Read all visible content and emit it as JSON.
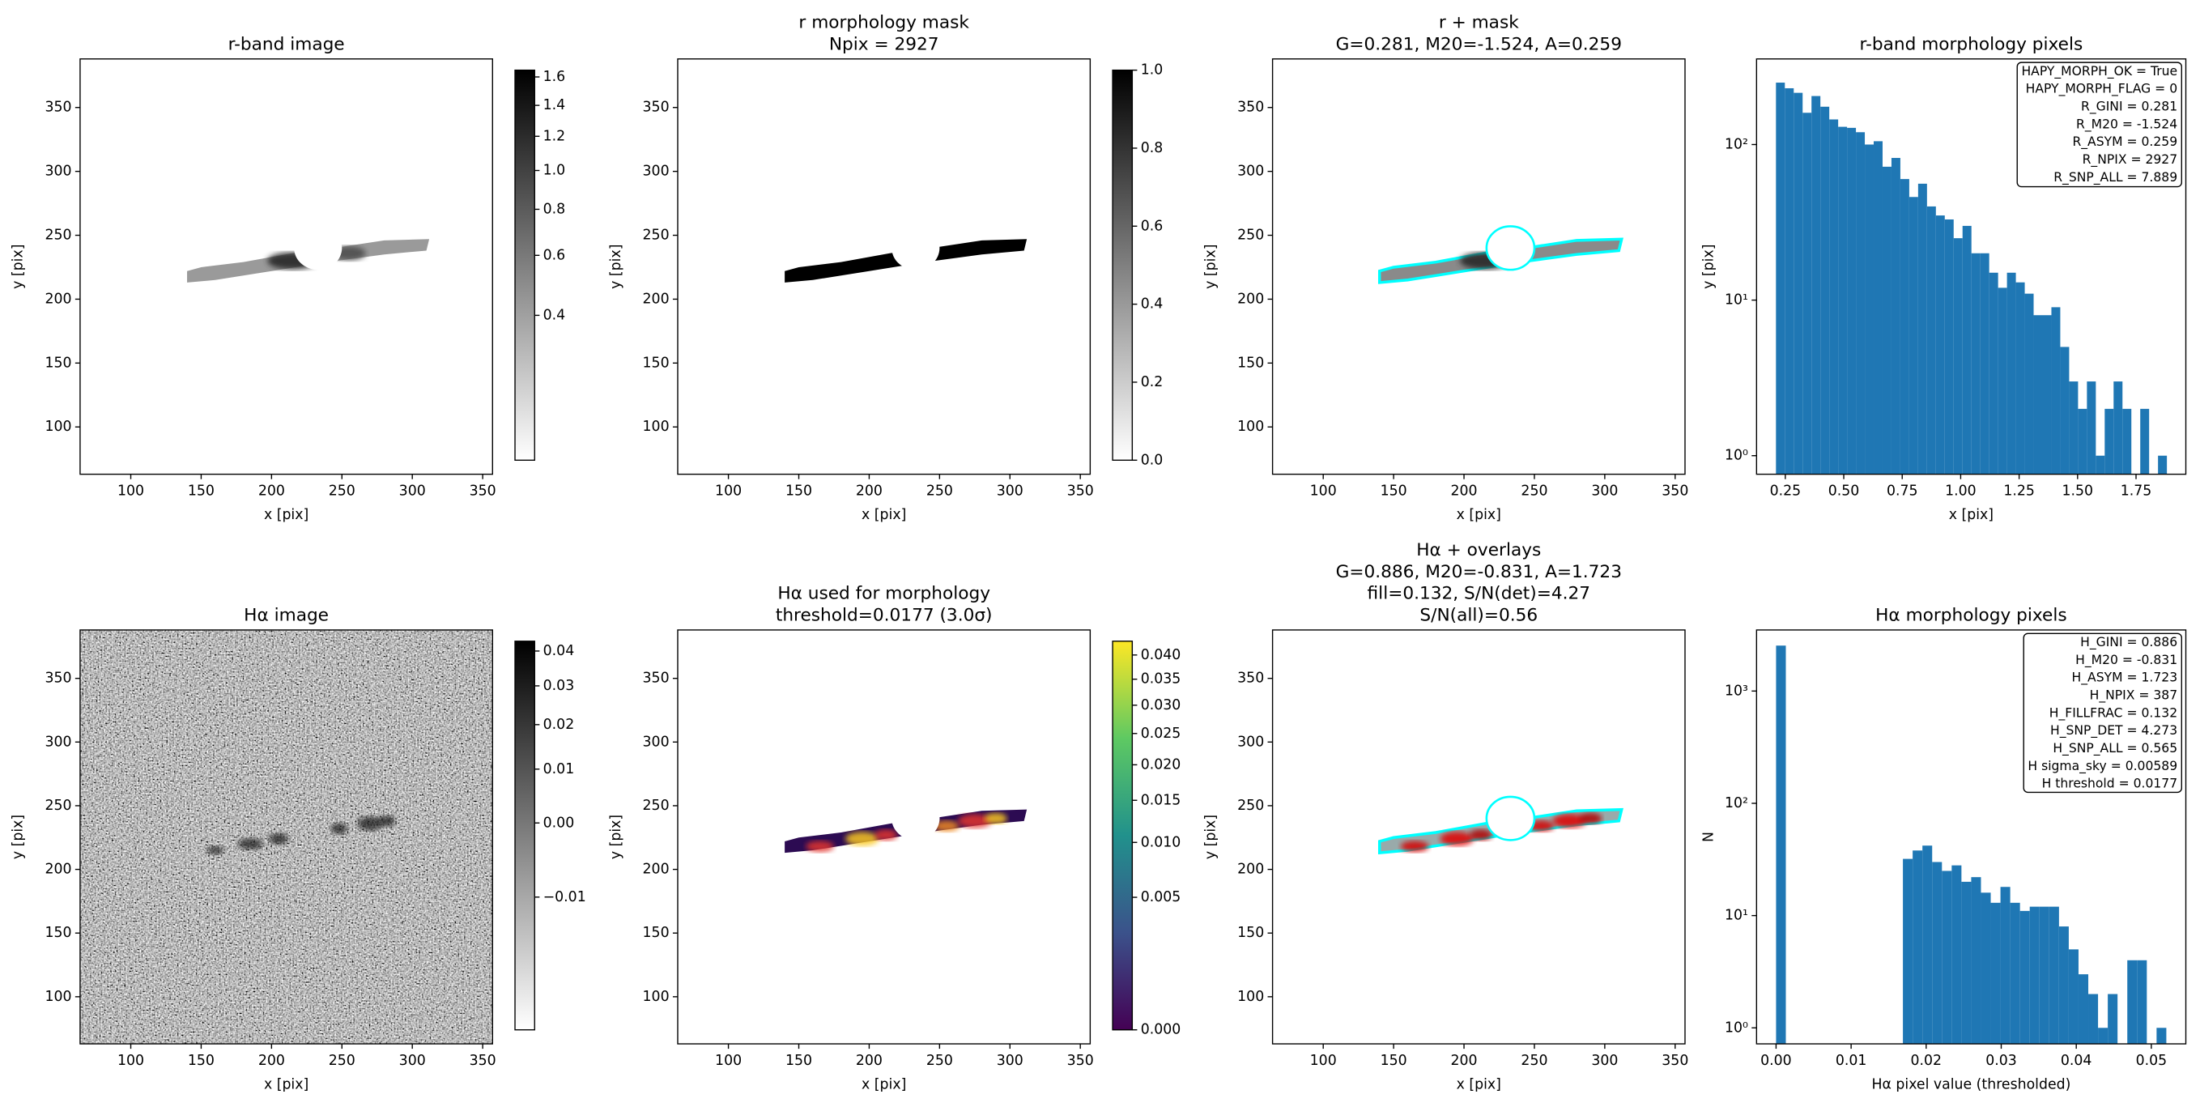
{
  "chart_data": [
    {
      "type": "image",
      "title": [
        "r-band image"
      ],
      "xlabel": "x [pix]",
      "ylabel": "y [pix]",
      "xlim": [
        64,
        357
      ],
      "ylim": [
        63,
        388
      ],
      "xticks": [
        100,
        150,
        200,
        250,
        300,
        350
      ],
      "yticks": [
        100,
        150,
        200,
        250,
        300,
        350
      ],
      "colorbar": {
        "cmap": "gray_r",
        "cscale": "sqrt",
        "clim": [
          0.2,
          1.65
        ],
        "ticks": [
          0.4,
          0.6,
          0.8,
          {
            "value": 1,
            "label": "1.0"
          },
          1.2,
          1.4,
          1.6
        ]
      }
    },
    {
      "type": "image",
      "title": [
        "r morphology mask",
        "Npix = 2927"
      ],
      "xlabel": "x [pix]",
      "ylabel": "y [pix]",
      "xlim": [
        64,
        357
      ],
      "ylim": [
        63,
        388
      ],
      "xticks": [
        100,
        150,
        200,
        250,
        300,
        350
      ],
      "yticks": [
        100,
        150,
        200,
        250,
        300,
        350
      ],
      "colorbar": {
        "cmap": "gray_r",
        "cscale": "linear",
        "clim": [
          0,
          1
        ],
        "ticks": [
          {
            "value": 0,
            "label": "0.0"
          },
          0.2,
          0.4,
          0.6,
          0.8,
          {
            "value": 1,
            "label": "1.0"
          }
        ]
      }
    },
    {
      "type": "image",
      "title": [
        "r + mask",
        "G=0.281, M20=-1.524, A=0.259"
      ],
      "xlabel": "x [pix]",
      "ylabel": "y [pix]",
      "xlim": [
        64,
        357
      ],
      "ylim": [
        63,
        388
      ],
      "xticks": [
        100,
        150,
        200,
        250,
        300,
        350
      ],
      "yticks": [
        100,
        150,
        200,
        250,
        300,
        350
      ]
    },
    {
      "type": "histogram",
      "title": [
        "r-band morphology pixels"
      ],
      "xlabel": "x [pix]",
      "ylabel": "y [pix]",
      "color": "#1f77b4",
      "log_y": true,
      "bins": [
        0.21,
        0.248,
        0.286,
        0.324,
        0.362,
        0.4,
        0.438,
        0.476,
        0.514,
        0.552,
        0.59,
        0.628,
        0.666,
        0.704,
        0.742,
        0.78,
        0.818,
        0.856,
        0.894,
        0.932,
        0.97,
        1.008,
        1.046,
        1.084,
        1.122,
        1.16,
        1.198,
        1.236,
        1.274,
        1.312,
        1.35,
        1.388,
        1.426,
        1.464,
        1.502,
        1.54,
        1.578,
        1.616,
        1.654,
        1.692,
        1.73,
        1.768,
        1.806,
        1.844,
        1.882
      ],
      "counts": [
        250,
        230,
        215,
        160,
        205,
        175,
        145,
        130,
        128,
        120,
        100,
        105,
        72,
        82,
        60,
        46,
        56,
        40,
        35,
        33,
        25,
        30,
        20,
        20,
        15,
        12,
        15,
        13,
        11,
        8,
        8,
        9,
        5,
        3,
        2,
        3,
        1,
        2,
        3,
        2,
        0,
        2,
        0,
        1
      ],
      "xlim": [
        0.127,
        1.963
      ],
      "ylim": [
        0.76,
        355
      ],
      "xticks": [
        0.25,
        {
          "value": 0.5,
          "label": "0.50"
        },
        0.75,
        {
          "value": 1,
          "label": "1.00"
        },
        1.25,
        {
          "value": 1.5,
          "label": "1.50"
        },
        1.75
      ],
      "yticks": [
        {
          "value": 1,
          "label": "10⁰"
        },
        {
          "value": 10,
          "label": "10¹"
        },
        {
          "value": 100,
          "label": "10²"
        }
      ],
      "annotation": [
        "HAPY_MORPH_OK = True",
        "HAPY_MORPH_FLAG = 0",
        "R_GINI = 0.281",
        "R_M20 = -1.524",
        "R_ASYM = 0.259",
        "R_NPIX = 2927",
        "R_SNP_ALL = 7.889"
      ]
    },
    {
      "type": "image",
      "title": [
        "Hα image"
      ],
      "xlabel": "x [pix]",
      "ylabel": "y [pix]",
      "xlim": [
        64,
        357
      ],
      "ylim": [
        63,
        388
      ],
      "xticks": [
        100,
        150,
        200,
        250,
        300,
        350
      ],
      "yticks": [
        100,
        150,
        200,
        250,
        300,
        350
      ],
      "colorbar": {
        "cmap": "gray_r",
        "cscale": "sqrt",
        "clim": [
          -0.017,
          0.043
        ],
        "ticks": [
          {
            "value": -0.01,
            "label": "−0.01"
          },
          {
            "value": 0,
            "label": "0.00"
          },
          0.01,
          0.02,
          0.03,
          0.04
        ]
      }
    },
    {
      "type": "image",
      "title": [
        "Hα used for morphology",
        "threshold=0.0177 (3.0σ)"
      ],
      "xlabel": "x [pix]",
      "ylabel": "y [pix]",
      "xlim": [
        64,
        357
      ],
      "ylim": [
        63,
        388
      ],
      "xticks": [
        100,
        150,
        200,
        250,
        300,
        350
      ],
      "yticks": [
        100,
        150,
        200,
        250,
        300,
        350
      ],
      "colorbar": {
        "cmap": "viridis",
        "cscale": "sqrt",
        "clim": [
          0,
          0.043
        ],
        "ticks": [
          {
            "value": 0,
            "label": "0.000"
          },
          0.005,
          {
            "value": 0.01,
            "label": "0.010"
          },
          0.015,
          {
            "value": 0.02,
            "label": "0.020"
          },
          0.025,
          {
            "value": 0.03,
            "label": "0.030"
          },
          0.035,
          {
            "value": 0.04,
            "label": "0.040"
          }
        ]
      }
    },
    {
      "type": "image",
      "title": [
        "Hα + overlays",
        "G=0.886, M20=-0.831, A=1.723",
        "fill=0.132, S/N(det)=4.27",
        "S/N(all)=0.56"
      ],
      "xlabel": "x [pix]",
      "ylabel": "y [pix]",
      "xlim": [
        64,
        357
      ],
      "ylim": [
        63,
        388
      ],
      "xticks": [
        100,
        150,
        200,
        250,
        300,
        350
      ],
      "yticks": [
        100,
        150,
        200,
        250,
        300,
        350
      ]
    },
    {
      "type": "histogram",
      "title": [
        "Hα morphology pixels"
      ],
      "xlabel": "Hα pixel value (thresholded)",
      "ylabel": "N",
      "color": "#1f77b4",
      "log_y": true,
      "bins": [
        0,
        0.0013,
        0.0026,
        0.0039,
        0.0052,
        0.0065,
        0.0078,
        0.0091,
        0.0104,
        0.0117,
        0.013,
        0.0143,
        0.0156,
        0.0169,
        0.0182,
        0.0195,
        0.0208,
        0.0221,
        0.0234,
        0.0247,
        0.026,
        0.0273,
        0.0286,
        0.0299,
        0.0312,
        0.0325,
        0.0338,
        0.0351,
        0.0364,
        0.0377,
        0.039,
        0.0403,
        0.0416,
        0.0429,
        0.0442,
        0.0455,
        0.0468,
        0.0481,
        0.0494,
        0.0507,
        0.052
      ],
      "counts": [
        2540,
        0,
        0,
        0,
        0,
        0,
        0,
        0,
        0,
        0,
        0,
        0,
        0,
        32,
        38,
        42,
        30,
        25,
        28,
        20,
        22,
        16,
        13,
        18,
        13,
        11,
        12,
        12,
        12,
        8,
        5,
        3,
        2,
        1,
        2,
        0,
        4,
        4,
        0,
        1
      ],
      "xlim": [
        -0.0026,
        0.0546
      ],
      "ylim": [
        0.72,
        3500
      ],
      "xticks": [
        {
          "value": 0,
          "label": "0.00"
        },
        0.01,
        0.02,
        0.03,
        0.04,
        0.05
      ],
      "yticks": [
        {
          "value": 1,
          "label": "10⁰"
        },
        {
          "value": 10,
          "label": "10¹"
        },
        {
          "value": 100,
          "label": "10²"
        },
        {
          "value": 1000,
          "label": "10³"
        }
      ],
      "annotation": [
        "H_GINI = 0.886",
        "H_M20 = -0.831",
        "H_ASYM = 1.723",
        "H_NPIX = 387",
        "H_FILLFRAC = 0.132",
        "H_SNP_DET = 4.273",
        "H_SNP_ALL = 0.565",
        "H sigma_sky = 0.00589",
        "H threshold = 0.0177"
      ]
    }
  ]
}
